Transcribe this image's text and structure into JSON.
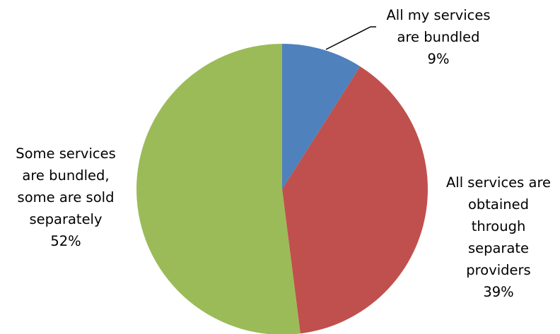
{
  "chart_data": {
    "type": "pie",
    "title": "",
    "slices": [
      {
        "label_lines": [
          "All my services",
          "are bundled"
        ],
        "value": 9,
        "value_text": "9%",
        "color": "#4F81BD"
      },
      {
        "label_lines": [
          "All services are",
          "obtained",
          "through",
          "separate",
          "providers"
        ],
        "value": 39,
        "value_text": "39%",
        "color": "#C0504D"
      },
      {
        "label_lines": [
          "Some services",
          "are bundled,",
          "some are sold",
          "separately"
        ],
        "value": 52,
        "value_text": "52%",
        "color": "#9BBB59"
      }
    ],
    "start_angle_deg": 0,
    "direction": "clockwise",
    "legend": "none",
    "leader_line_color": "#000000"
  }
}
